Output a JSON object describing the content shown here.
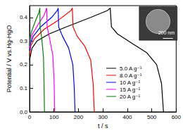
{
  "chart_data": {
    "type": "line",
    "x_label": "t / s",
    "y_label": "Potential / V vs.Hg-HgO",
    "xlim": [
      0,
      600
    ],
    "xticks": [
      0,
      100,
      200,
      300,
      400,
      500,
      600
    ],
    "ylim": [
      0,
      0.45
    ],
    "yticks": [
      {
        "value": 0,
        "label": "0.0"
      },
      0.1,
      0.2,
      0.3,
      0.4
    ],
    "legend": "right",
    "inset": {
      "scale_bar": "200 nm"
    },
    "series": [
      {
        "name": "5.0 A g⁻¹",
        "color": "#000000",
        "x": [
          0,
          10,
          30,
          80,
          150,
          250,
          320,
          330,
          335,
          360,
          420,
          480,
          520,
          540,
          548
        ],
        "values": [
          0.22,
          0.27,
          0.3,
          0.33,
          0.36,
          0.4,
          0.43,
          0.44,
          0.36,
          0.33,
          0.29,
          0.25,
          0.2,
          0.12,
          0.0
        ]
      },
      {
        "name": "8.0 A g⁻¹",
        "color": "#ff0000",
        "x": [
          0,
          5,
          20,
          60,
          120,
          170,
          175,
          178,
          195,
          225,
          250,
          260,
          265
        ],
        "values": [
          0.24,
          0.28,
          0.31,
          0.35,
          0.39,
          0.43,
          0.44,
          0.36,
          0.32,
          0.28,
          0.22,
          0.12,
          0.0
        ]
      },
      {
        "name": "10 A g⁻¹",
        "color": "#0000ff",
        "x": [
          0,
          4,
          15,
          45,
          90,
          114,
          117,
          119,
          135,
          160,
          177,
          183,
          186
        ],
        "values": [
          0.26,
          0.29,
          0.32,
          0.36,
          0.4,
          0.43,
          0.44,
          0.36,
          0.32,
          0.27,
          0.2,
          0.1,
          0.0
        ]
      },
      {
        "name": "15 A g⁻¹",
        "color": "#ff00ff",
        "x": [
          0,
          3,
          12,
          35,
          60,
          70,
          72,
          82,
          95,
          100,
          103
        ],
        "values": [
          0.27,
          0.3,
          0.33,
          0.37,
          0.41,
          0.44,
          0.36,
          0.31,
          0.24,
          0.14,
          0.0
        ]
      },
      {
        "name": "20 A g⁻¹",
        "color": "#008000",
        "x": [
          0,
          2,
          8,
          22,
          38,
          42,
          43,
          50,
          57,
          59,
          61
        ],
        "values": [
          0.28,
          0.31,
          0.34,
          0.38,
          0.42,
          0.44,
          0.36,
          0.31,
          0.23,
          0.13,
          0.0
        ]
      }
    ]
  }
}
